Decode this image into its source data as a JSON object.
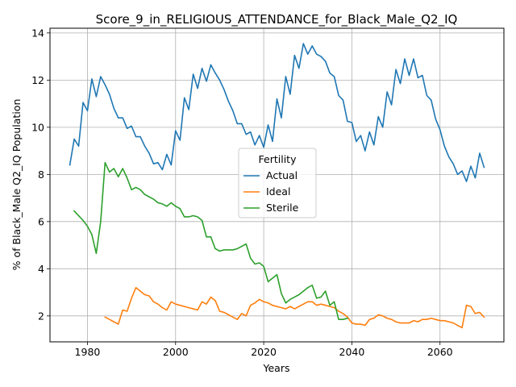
{
  "chart_data": {
    "type": "line",
    "title": "Score_9_in_RELIGIOUS_ATTENDANCE_for_Black_Male_Q2_IQ",
    "xlabel": "Years",
    "ylabel": "% of Black_Male Q2_IQ Population",
    "xlim": [
      1971.5,
      2074.5
    ],
    "ylim": [
      0.9,
      14.2
    ],
    "xticks": [
      1980,
      2000,
      2020,
      2040,
      2060
    ],
    "yticks": [
      2,
      4,
      6,
      8,
      10,
      12,
      14
    ],
    "grid": true,
    "legend": {
      "title": "Fertility",
      "placement": "center"
    },
    "series": [
      {
        "name": "Actual",
        "color": "#1f77b4",
        "x_start": 1976,
        "values": [
          8.4,
          9.5,
          9.2,
          11.05,
          10.7,
          12.05,
          11.3,
          12.15,
          11.8,
          11.4,
          10.8,
          10.4,
          10.4,
          9.95,
          10.05,
          9.6,
          9.6,
          9.2,
          8.9,
          8.45,
          8.5,
          8.2,
          8.85,
          8.4,
          9.85,
          9.45,
          11.25,
          10.75,
          12.25,
          11.65,
          12.5,
          11.95,
          12.65,
          12.3,
          12.0,
          11.6,
          11.1,
          10.7,
          10.15,
          10.15,
          9.7,
          9.8,
          9.25,
          9.65,
          9.15,
          10.1,
          9.4,
          11.2,
          10.4,
          12.15,
          11.4,
          13.05,
          12.5,
          13.55,
          13.1,
          13.45,
          13.1,
          13.0,
          12.8,
          12.3,
          12.15,
          11.35,
          11.15,
          10.25,
          10.2,
          9.4,
          9.65,
          9.0,
          9.8,
          9.25,
          10.45,
          10.0,
          11.5,
          10.95,
          12.45,
          11.85,
          12.9,
          12.2,
          12.9,
          12.1,
          12.2,
          11.35,
          11.15,
          10.35,
          9.9,
          9.2,
          8.75,
          8.45,
          8.0,
          8.15,
          7.7,
          8.35,
          7.85,
          8.9,
          8.3
        ]
      },
      {
        "name": "Ideal",
        "color": "#ff7f0e",
        "x_start": 1984,
        "values": [
          1.95,
          1.85,
          1.75,
          1.65,
          2.25,
          2.2,
          2.75,
          3.2,
          3.05,
          2.9,
          2.85,
          2.6,
          2.5,
          2.35,
          2.25,
          2.6,
          2.5,
          2.45,
          2.4,
          2.35,
          2.3,
          2.25,
          2.6,
          2.5,
          2.8,
          2.65,
          2.2,
          2.15,
          2.05,
          1.95,
          1.85,
          2.1,
          2.0,
          2.45,
          2.55,
          2.7,
          2.6,
          2.55,
          2.45,
          2.4,
          2.35,
          2.3,
          2.4,
          2.3,
          2.4,
          2.5,
          2.6,
          2.6,
          2.45,
          2.5,
          2.45,
          2.4,
          2.35,
          2.2,
          2.1,
          1.95,
          1.7,
          1.65,
          1.65,
          1.6,
          1.85,
          1.9,
          2.05,
          2.0,
          1.9,
          1.85,
          1.75,
          1.7,
          1.7,
          1.7,
          1.8,
          1.75,
          1.85,
          1.85,
          1.9,
          1.85,
          1.8,
          1.8,
          1.75,
          1.7,
          1.6,
          1.5,
          2.45,
          2.4,
          2.1,
          2.15,
          1.95
        ]
      },
      {
        "name": "Sterile",
        "color": "#2ca02c",
        "x_start": 1977,
        "values": [
          6.45,
          6.25,
          6.05,
          5.8,
          5.45,
          4.65,
          6.0,
          8.5,
          8.1,
          8.25,
          7.9,
          8.25,
          7.85,
          7.35,
          7.45,
          7.35,
          7.15,
          7.05,
          6.95,
          6.8,
          6.75,
          6.65,
          6.8,
          6.65,
          6.55,
          6.2,
          6.2,
          6.25,
          6.2,
          6.05,
          5.35,
          5.35,
          4.85,
          4.75,
          4.8,
          4.8,
          4.8,
          4.85,
          4.95,
          5.05,
          4.45,
          4.2,
          4.25,
          4.1,
          3.45,
          3.6,
          3.75,
          2.95,
          2.55,
          2.7,
          2.8,
          2.9,
          3.05,
          3.2,
          3.3,
          2.75,
          2.8,
          3.05,
          2.45,
          2.6,
          1.85,
          1.85,
          1.9
        ]
      }
    ]
  }
}
